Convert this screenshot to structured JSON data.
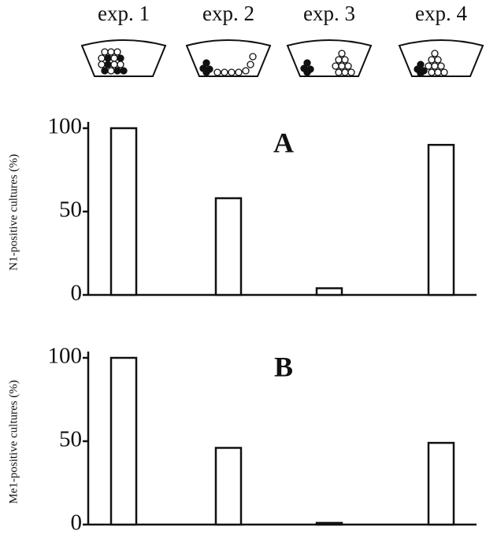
{
  "chart_data": [
    {
      "type": "bar",
      "panel_label": "A",
      "y_label": "N1-positive cultures (%)",
      "categories": [
        "exp. 1",
        "exp. 2",
        "exp. 3",
        "exp. 4"
      ],
      "values": [
        100,
        58,
        4,
        90
      ],
      "color": "#ffffff",
      "ylim": [
        0,
        100
      ],
      "yticks": [
        0,
        50,
        100
      ]
    },
    {
      "type": "bar",
      "panel_label": "B",
      "y_label": "Me1-positive cultures (%)",
      "values": [
        100,
        46,
        1,
        49
      ],
      "color": "#ffffff",
      "ylim": [
        0,
        100
      ],
      "yticks": [
        0,
        50,
        100
      ]
    }
  ]
}
